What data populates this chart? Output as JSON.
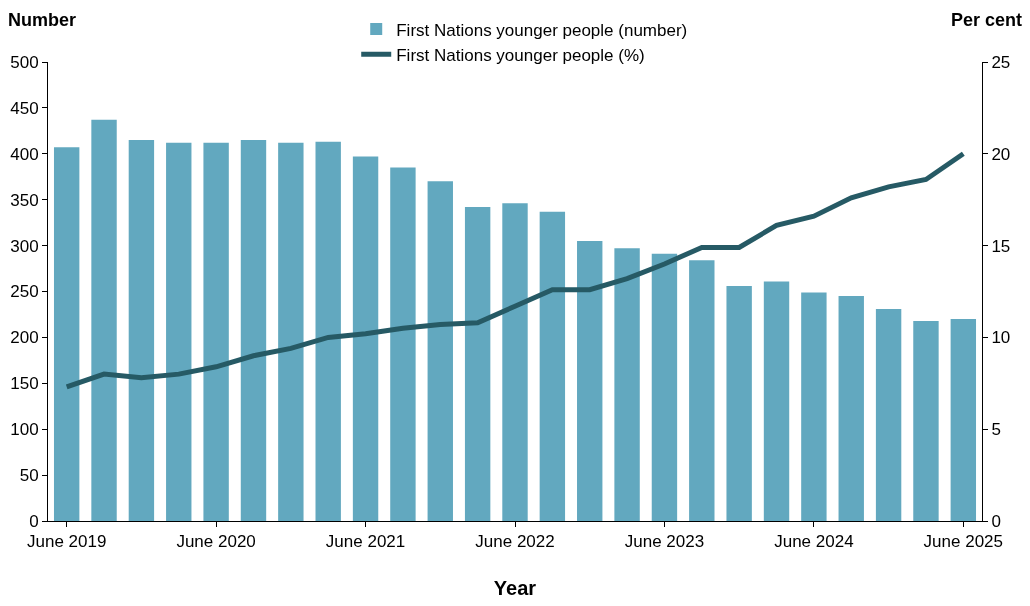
{
  "chart_data": {
    "type": "bar",
    "ylabel": "Number",
    "y2label": "Per cent",
    "xlabel": "Year",
    "categories": [
      "June 2019",
      null,
      null,
      null,
      "June 2020",
      null,
      null,
      null,
      "June 2021",
      null,
      null,
      null,
      "June 2022",
      null,
      null,
      null,
      "June 2023",
      null,
      null,
      null,
      "June 2024",
      null,
      null,
      null,
      "June 2025"
    ],
    "series": [
      {
        "name": "First Nations younger people (number)",
        "color": "#62a8bf",
        "values": [
          407,
          437,
          415,
          412,
          412,
          415,
          412,
          413,
          397,
          385,
          370,
          342,
          346,
          337,
          305,
          297,
          291,
          284,
          256,
          261,
          249,
          245,
          231,
          218,
          220
        ]
      },
      {
        "name": "First Nations younger people (%)",
        "type": "line",
        "axis": "y2",
        "color": "#265a65",
        "values": [
          7.3,
          8.0,
          7.8,
          8.0,
          8.4,
          9.0,
          9.4,
          10.0,
          10.2,
          10.5,
          10.7,
          10.8,
          11.7,
          12.6,
          12.6,
          13.2,
          14.0,
          14.9,
          14.9,
          16.1,
          16.6,
          17.6,
          18.2,
          18.6,
          20.0
        ]
      }
    ],
    "ylim": [
      0,
      500
    ],
    "yticks": [
      0,
      50,
      100,
      150,
      200,
      250,
      300,
      350,
      400,
      450,
      500
    ],
    "y2lim": [
      0,
      25
    ],
    "y2ticks": [
      0,
      5,
      10,
      15,
      20,
      25
    ],
    "legend": "top",
    "grid": false,
    "marker": "none",
    "line_style": "solid"
  }
}
